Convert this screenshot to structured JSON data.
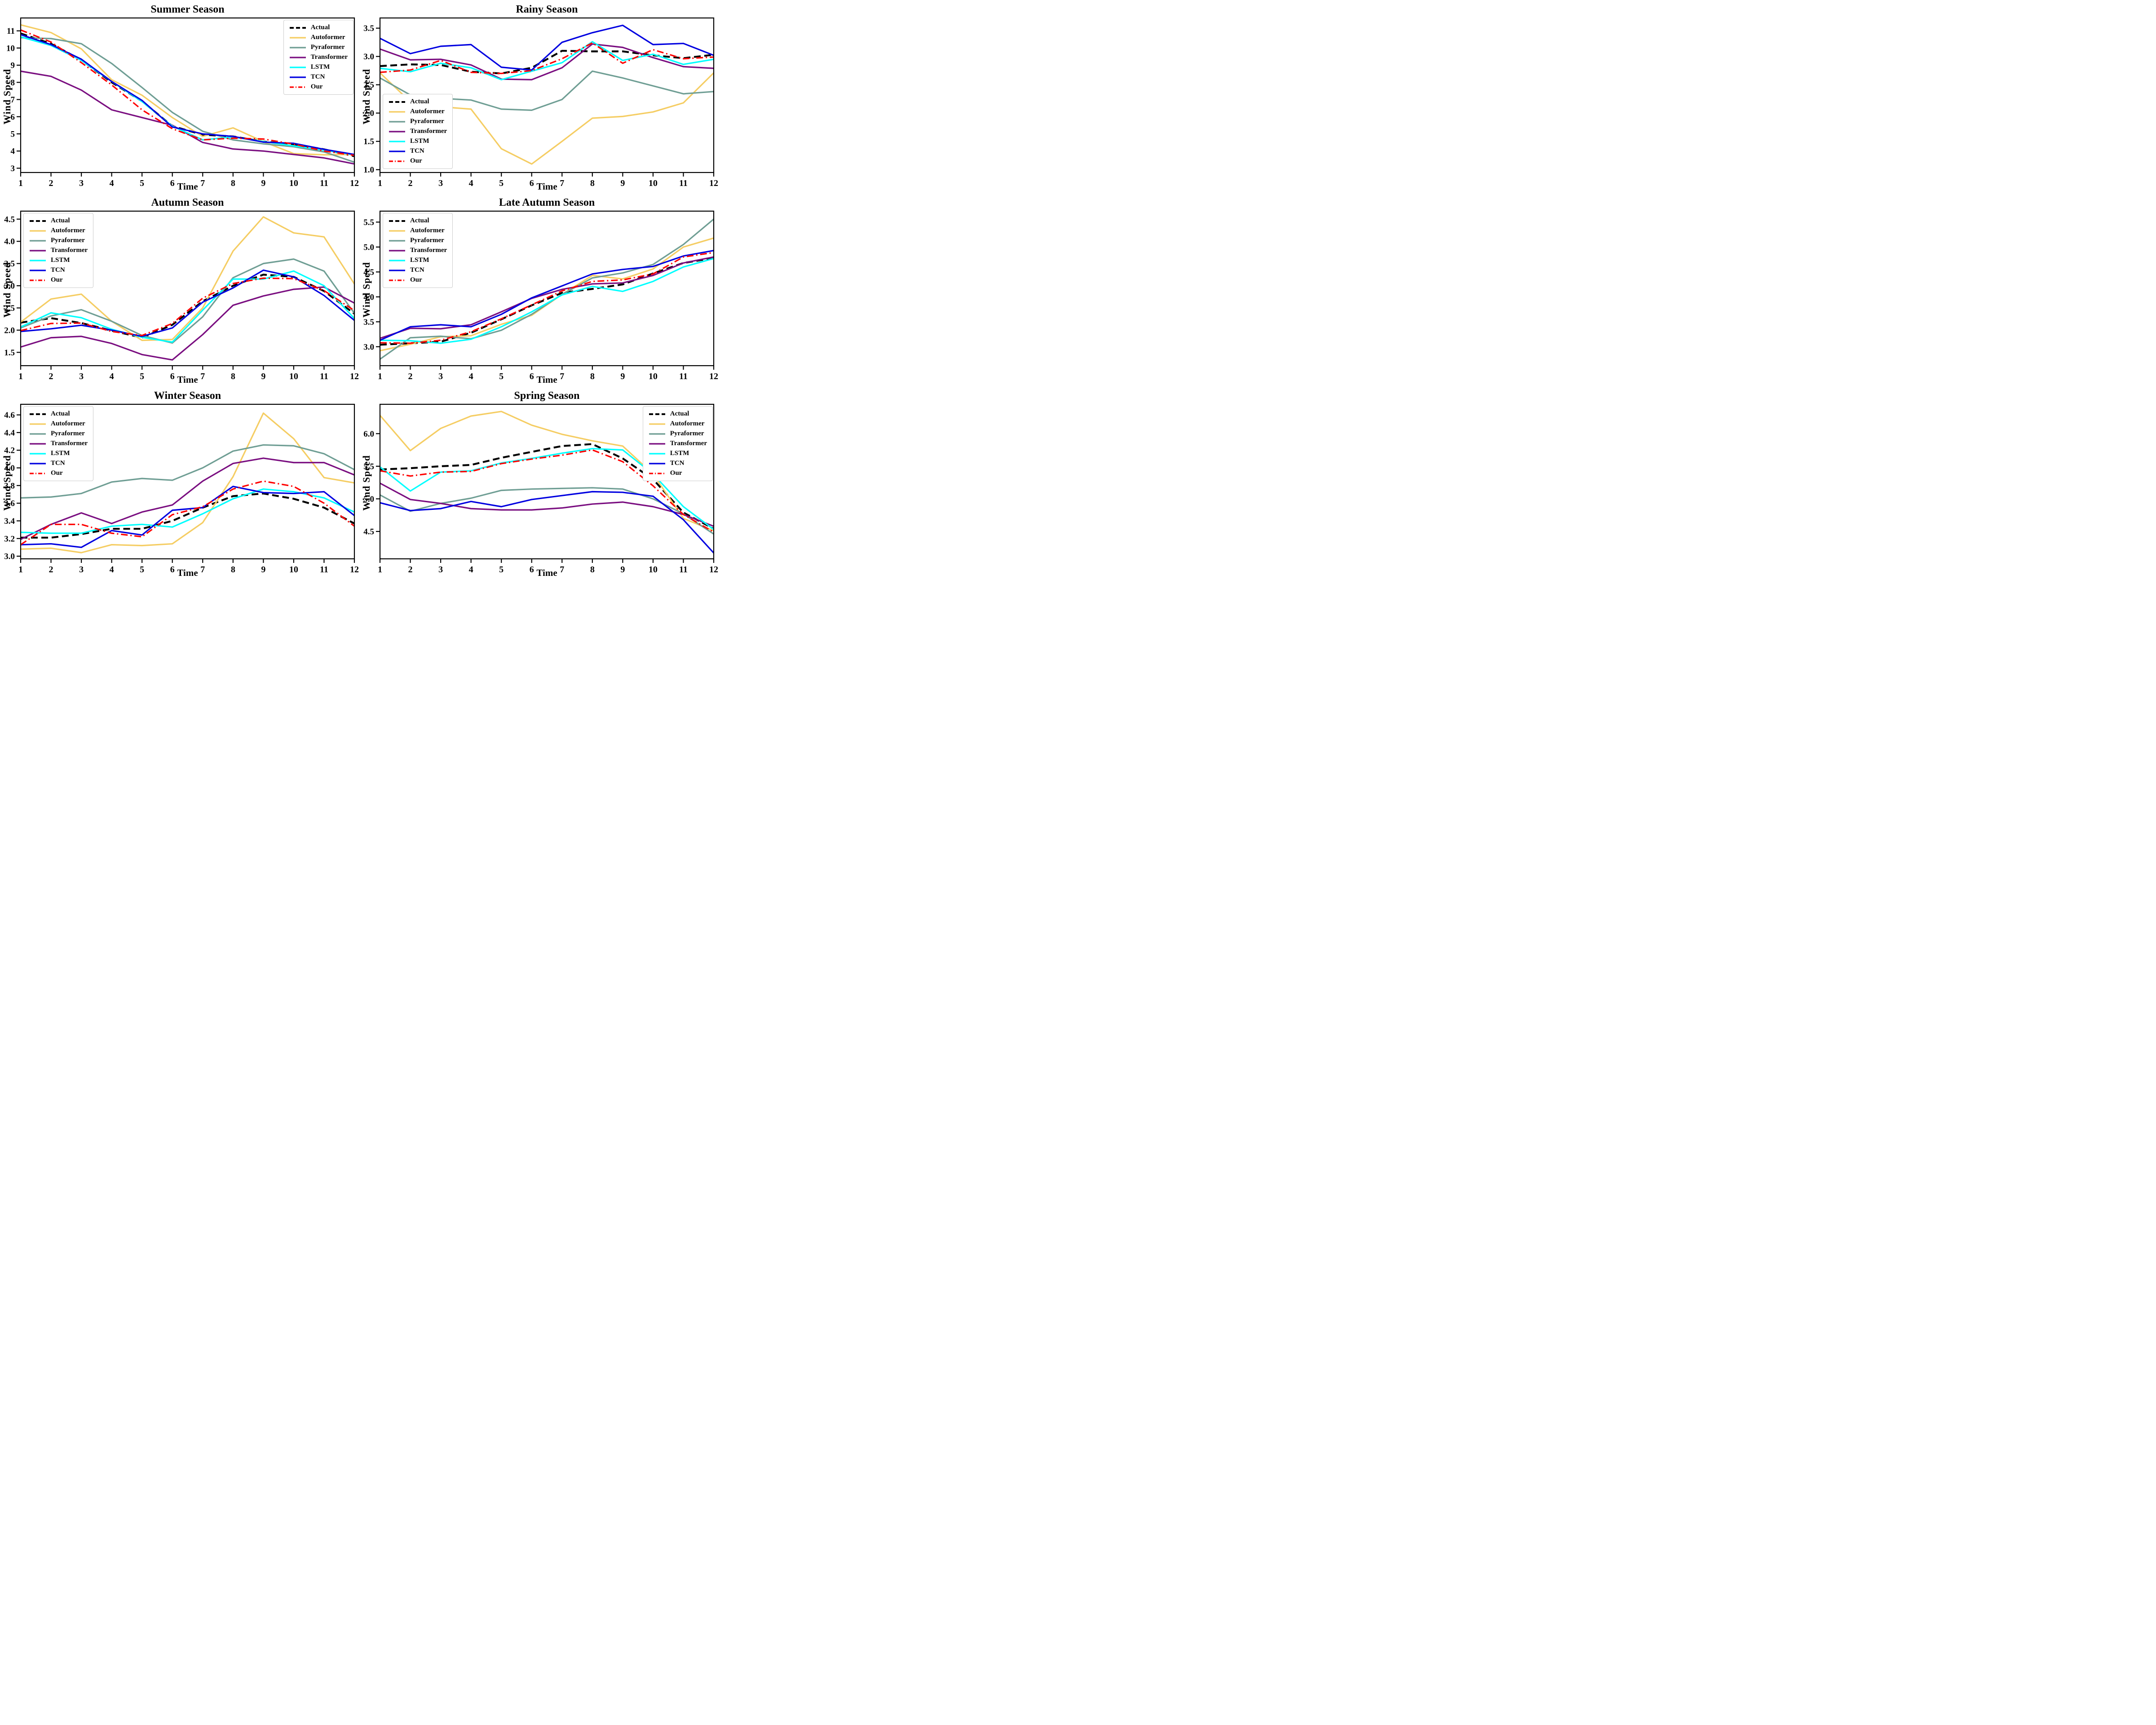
{
  "figure": {
    "xlabel": "Time",
    "ylabel": "Wind Speed"
  },
  "series_meta": [
    {
      "name": "Actual",
      "color": "#000000",
      "style": "dashed",
      "width": 4.2
    },
    {
      "name": "Autoformer",
      "color": "#F5CD63",
      "style": "solid",
      "width": 3.2
    },
    {
      "name": "Pyraformer",
      "color": "#6F9E94",
      "style": "solid",
      "width": 3.2
    },
    {
      "name": "Transformer",
      "color": "#7A0E80",
      "style": "solid",
      "width": 3.2
    },
    {
      "name": "LSTM",
      "color": "#00FFFF",
      "style": "solid",
      "width": 3.2
    },
    {
      "name": "TCN",
      "color": "#0000E0",
      "style": "solid",
      "width": 3.2
    },
    {
      "name": "Our",
      "color": "#FF0000",
      "style": "dashdot",
      "width": 3.2
    }
  ],
  "chart_data": [
    {
      "type": "line",
      "title": "Summer Season",
      "xlabel": "Time",
      "ylabel": "Wind Speed",
      "x": [
        1,
        2,
        3,
        4,
        5,
        6,
        7,
        8,
        9,
        10,
        11,
        12
      ],
      "xtick_labels": [
        "1",
        "2",
        "3",
        "4",
        "5",
        "6",
        "7",
        "8",
        "9",
        "10",
        "11",
        "12"
      ],
      "ylim": [
        2.75,
        11.75
      ],
      "yticks": [
        3,
        4,
        5,
        6,
        7,
        8,
        9,
        10,
        11
      ],
      "ytick_labels": [
        "3",
        "4",
        "5",
        "6",
        "7",
        "8",
        "9",
        "10",
        "11"
      ],
      "legend_position": "top-right",
      "grid": false,
      "series": [
        {
          "name": "Actual",
          "values": [
            10.85,
            10.25,
            9.3,
            8.0,
            6.9,
            5.45,
            4.95,
            4.85,
            4.55,
            4.4,
            4.1,
            3.7
          ]
        },
        {
          "name": "Autoformer",
          "values": [
            11.35,
            10.9,
            9.95,
            8.15,
            7.25,
            5.95,
            4.85,
            5.35,
            4.55,
            3.85,
            3.78,
            3.8
          ]
        },
        {
          "name": "Pyraformer",
          "values": [
            10.6,
            10.55,
            10.25,
            9.1,
            7.7,
            6.25,
            5.15,
            4.65,
            4.42,
            4.25,
            3.95,
            3.35
          ]
        },
        {
          "name": "Transformer",
          "values": [
            8.65,
            8.35,
            7.55,
            6.4,
            5.95,
            5.5,
            4.5,
            4.12,
            4.0,
            3.8,
            3.6,
            3.25
          ]
        },
        {
          "name": "LSTM",
          "values": [
            10.65,
            10.15,
            9.28,
            8.05,
            6.88,
            5.45,
            4.65,
            4.82,
            4.55,
            4.3,
            4.05,
            3.78
          ]
        },
        {
          "name": "TCN",
          "values": [
            10.78,
            10.2,
            9.35,
            8.05,
            6.95,
            5.4,
            5.0,
            4.85,
            4.52,
            4.45,
            4.1,
            3.8
          ]
        },
        {
          "name": "Our",
          "values": [
            11.05,
            10.35,
            9.15,
            7.85,
            6.4,
            5.3,
            4.65,
            4.75,
            4.7,
            4.4,
            4.0,
            3.75
          ]
        }
      ]
    },
    {
      "type": "line",
      "title": "Rainy Season",
      "xlabel": "Time",
      "ylabel": "Wind Speed",
      "x": [
        1,
        2,
        3,
        4,
        5,
        6,
        7,
        8,
        9,
        10,
        11,
        12
      ],
      "xtick_labels": [
        "1",
        "2",
        "3",
        "4",
        "5",
        "6",
        "7",
        "8",
        "9",
        "10",
        "11",
        "12"
      ],
      "ylim": [
        0.95,
        3.68
      ],
      "yticks": [
        1.0,
        1.5,
        2.0,
        2.5,
        3.0,
        3.5
      ],
      "ytick_labels": [
        "1.0",
        "1.5",
        "2.0",
        "2.5",
        "3.0",
        "3.5"
      ],
      "legend_position": "bottom-left",
      "grid": false,
      "series": [
        {
          "name": "Actual",
          "values": [
            2.83,
            2.86,
            2.85,
            2.73,
            2.7,
            2.8,
            3.1,
            3.09,
            3.09,
            3.02,
            2.97,
            3.03
          ]
        },
        {
          "name": "Autoformer",
          "values": [
            2.71,
            2.2,
            2.11,
            2.07,
            1.37,
            1.1,
            1.5,
            1.91,
            1.94,
            2.02,
            2.18,
            2.71
          ]
        },
        {
          "name": "Pyraformer",
          "values": [
            2.62,
            2.32,
            2.26,
            2.23,
            2.07,
            2.05,
            2.24,
            2.74,
            2.62,
            2.48,
            2.34,
            2.38
          ]
        },
        {
          "name": "Transformer",
          "values": [
            3.13,
            2.94,
            2.95,
            2.85,
            2.6,
            2.59,
            2.8,
            3.22,
            3.16,
            2.98,
            2.82,
            2.79
          ]
        },
        {
          "name": "LSTM",
          "values": [
            2.79,
            2.73,
            2.88,
            2.8,
            2.59,
            2.74,
            2.89,
            3.26,
            2.93,
            3.04,
            2.86,
            2.95
          ]
        },
        {
          "name": "TCN",
          "values": [
            3.32,
            3.05,
            3.18,
            3.21,
            2.81,
            2.76,
            3.25,
            3.42,
            3.55,
            3.21,
            3.23,
            3.02
          ]
        },
        {
          "name": "Our",
          "values": [
            2.72,
            2.76,
            2.93,
            2.72,
            2.7,
            2.75,
            2.96,
            3.24,
            2.88,
            3.12,
            2.96,
            2.99
          ]
        }
      ]
    },
    {
      "type": "line",
      "title": "Autumn Season",
      "xlabel": "Time",
      "ylabel": "Wind Speed",
      "x": [
        1,
        2,
        3,
        4,
        5,
        6,
        7,
        8,
        9,
        10,
        11,
        12
      ],
      "xtick_labels": [
        "1",
        "2",
        "3",
        "4",
        "5",
        "6",
        "7",
        "8",
        "9",
        "10",
        "11",
        "12"
      ],
      "ylim": [
        1.2,
        4.68
      ],
      "yticks": [
        1.5,
        2.0,
        2.5,
        3.0,
        3.5,
        4.0,
        4.5
      ],
      "ytick_labels": [
        "1.5",
        "2.0",
        "2.5",
        "3.0",
        "3.5",
        "4.0",
        "4.5"
      ],
      "legend_position": "top-left",
      "grid": false,
      "series": [
        {
          "name": "Actual",
          "values": [
            2.17,
            2.27,
            2.16,
            1.99,
            1.83,
            2.12,
            2.65,
            3.0,
            3.25,
            3.2,
            2.88,
            2.37
          ]
        },
        {
          "name": "Autoformer",
          "values": [
            2.18,
            2.7,
            2.81,
            2.2,
            1.77,
            1.79,
            2.5,
            3.78,
            4.55,
            4.19,
            4.1,
            3.04
          ]
        },
        {
          "name": "Pyraformer",
          "values": [
            2.05,
            2.32,
            2.46,
            2.2,
            1.88,
            1.71,
            2.3,
            3.18,
            3.5,
            3.6,
            3.33,
            2.38
          ]
        },
        {
          "name": "Transformer",
          "values": [
            1.62,
            1.83,
            1.86,
            1.7,
            1.45,
            1.33,
            1.9,
            2.56,
            2.77,
            2.92,
            2.97,
            2.61
          ]
        },
        {
          "name": "LSTM",
          "values": [
            2.07,
            2.39,
            2.28,
            2.02,
            1.84,
            1.73,
            2.45,
            3.15,
            3.15,
            3.33,
            3.0,
            2.26
          ]
        },
        {
          "name": "TCN",
          "values": [
            1.97,
            2.03,
            2.11,
            2.0,
            1.86,
            2.05,
            2.63,
            2.95,
            3.35,
            3.2,
            2.78,
            2.22
          ]
        },
        {
          "name": "Our",
          "values": [
            1.99,
            2.15,
            2.16,
            1.97,
            1.88,
            2.15,
            2.72,
            3.05,
            3.17,
            3.16,
            2.89,
            2.44
          ]
        }
      ]
    },
    {
      "type": "line",
      "title": "Late Autumn Season",
      "xlabel": "Time",
      "ylabel": "Wind Speed",
      "x": [
        1,
        2,
        3,
        4,
        5,
        6,
        7,
        8,
        9,
        10,
        11,
        12
      ],
      "xtick_labels": [
        "1",
        "2",
        "3",
        "4",
        "5",
        "6",
        "7",
        "8",
        "9",
        "10",
        "11",
        "12"
      ],
      "ylim": [
        2.62,
        5.72
      ],
      "yticks": [
        3.0,
        3.5,
        4.0,
        4.5,
        5.0,
        5.5
      ],
      "ytick_labels": [
        "3.0",
        "3.5",
        "4.0",
        "4.5",
        "5.0",
        "5.5"
      ],
      "legend_position": "top-left",
      "grid": false,
      "series": [
        {
          "name": "Actual",
          "values": [
            3.04,
            3.07,
            3.1,
            3.28,
            3.55,
            3.83,
            4.08,
            4.16,
            4.25,
            4.47,
            4.68,
            4.78
          ]
        },
        {
          "name": "Autoformer",
          "values": [
            2.92,
            3.05,
            3.2,
            3.22,
            3.45,
            3.63,
            4.05,
            4.43,
            4.36,
            4.56,
            5.0,
            5.18
          ]
        },
        {
          "name": "Pyraformer",
          "values": [
            2.75,
            3.18,
            3.21,
            3.16,
            3.33,
            3.65,
            4.05,
            4.38,
            4.48,
            4.65,
            5.05,
            5.56
          ]
        },
        {
          "name": "Transformer",
          "values": [
            3.17,
            3.37,
            3.36,
            3.44,
            3.7,
            3.97,
            4.15,
            4.26,
            4.28,
            4.43,
            4.68,
            4.8
          ]
        },
        {
          "name": "LSTM",
          "values": [
            3.13,
            3.12,
            3.07,
            3.15,
            3.4,
            3.7,
            4.04,
            4.21,
            4.11,
            4.31,
            4.6,
            4.77
          ]
        },
        {
          "name": "TCN",
          "values": [
            3.13,
            3.4,
            3.44,
            3.4,
            3.65,
            3.98,
            4.22,
            4.46,
            4.55,
            4.61,
            4.82,
            4.93
          ]
        },
        {
          "name": "Our",
          "values": [
            3.08,
            3.07,
            3.13,
            3.3,
            3.56,
            3.84,
            4.12,
            4.31,
            4.34,
            4.46,
            4.8,
            4.89
          ]
        }
      ]
    },
    {
      "type": "line",
      "title": "Winter Season",
      "xlabel": "Time",
      "ylabel": "Wind Speed",
      "x": [
        1,
        2,
        3,
        4,
        5,
        6,
        7,
        8,
        9,
        10,
        11,
        12
      ],
      "xtick_labels": [
        "1",
        "2",
        "3",
        "4",
        "5",
        "6",
        "7",
        "8",
        "9",
        "10",
        "11",
        "12"
      ],
      "ylim": [
        2.97,
        4.72
      ],
      "yticks": [
        3.0,
        3.2,
        3.4,
        3.6,
        3.8,
        4.0,
        4.2,
        4.4,
        4.6
      ],
      "ytick_labels": [
        "3.0",
        "3.2",
        "3.4",
        "3.6",
        "3.8",
        "4.0",
        "4.2",
        "4.4",
        "4.6"
      ],
      "legend_position": "top-left",
      "grid": false,
      "series": [
        {
          "name": "Actual",
          "values": [
            3.21,
            3.21,
            3.25,
            3.31,
            3.31,
            3.4,
            3.55,
            3.68,
            3.71,
            3.65,
            3.55,
            3.37
          ]
        },
        {
          "name": "Autoformer",
          "values": [
            3.08,
            3.09,
            3.04,
            3.13,
            3.12,
            3.14,
            3.38,
            3.9,
            4.62,
            4.33,
            3.89,
            3.83
          ]
        },
        {
          "name": "Pyraformer",
          "values": [
            3.66,
            3.67,
            3.71,
            3.84,
            3.88,
            3.86,
            4.0,
            4.19,
            4.26,
            4.25,
            4.16,
            3.98
          ]
        },
        {
          "name": "Transformer",
          "values": [
            3.19,
            3.36,
            3.49,
            3.37,
            3.5,
            3.58,
            3.85,
            4.05,
            4.11,
            4.06,
            4.06,
            3.92
          ]
        },
        {
          "name": "LSTM",
          "values": [
            3.27,
            3.26,
            3.26,
            3.34,
            3.36,
            3.33,
            3.48,
            3.65,
            3.76,
            3.73,
            3.66,
            3.5
          ]
        },
        {
          "name": "TCN",
          "values": [
            3.13,
            3.14,
            3.1,
            3.29,
            3.24,
            3.52,
            3.55,
            3.79,
            3.72,
            3.71,
            3.73,
            3.46
          ]
        },
        {
          "name": "Our",
          "values": [
            3.13,
            3.36,
            3.36,
            3.26,
            3.22,
            3.47,
            3.56,
            3.76,
            3.85,
            3.79,
            3.6,
            3.34
          ]
        }
      ]
    },
    {
      "type": "line",
      "title": "Spring Season",
      "xlabel": "Time",
      "ylabel": "Wind Speed",
      "x": [
        1,
        2,
        3,
        4,
        5,
        6,
        7,
        8,
        9,
        10,
        11,
        12
      ],
      "xtick_labels": [
        "1",
        "2",
        "3",
        "4",
        "5",
        "6",
        "7",
        "8",
        "9",
        "10",
        "11",
        "12"
      ],
      "ylim": [
        4.08,
        6.45
      ],
      "yticks": [
        4.5,
        5.0,
        5.5,
        6.0
      ],
      "ytick_labels": [
        "4.5",
        "5.0",
        "5.5",
        "6.0"
      ],
      "legend_position": "top-right",
      "grid": false,
      "series": [
        {
          "name": "Actual",
          "values": [
            5.45,
            5.47,
            5.5,
            5.52,
            5.63,
            5.72,
            5.81,
            5.84,
            5.62,
            5.3,
            4.79,
            4.54
          ]
        },
        {
          "name": "Autoformer",
          "values": [
            6.28,
            5.74,
            6.08,
            6.27,
            6.34,
            6.13,
            5.99,
            5.89,
            5.81,
            5.38,
            4.7,
            4.51
          ]
        },
        {
          "name": "Pyraformer",
          "values": [
            5.06,
            4.81,
            4.93,
            5.01,
            5.13,
            5.15,
            5.16,
            5.17,
            5.15,
            5.0,
            4.77,
            4.46
          ]
        },
        {
          "name": "Transformer",
          "values": [
            5.24,
            4.99,
            4.93,
            4.85,
            4.83,
            4.83,
            4.86,
            4.92,
            4.95,
            4.88,
            4.76,
            4.58
          ]
        },
        {
          "name": "LSTM",
          "values": [
            5.49,
            5.12,
            5.41,
            5.43,
            5.55,
            5.62,
            5.7,
            5.77,
            5.75,
            5.38,
            4.88,
            4.53
          ]
        },
        {
          "name": "TCN",
          "values": [
            4.94,
            4.82,
            4.85,
            4.96,
            4.88,
            4.99,
            5.05,
            5.11,
            5.1,
            5.04,
            4.68,
            4.17
          ]
        },
        {
          "name": "Our",
          "values": [
            5.43,
            5.35,
            5.41,
            5.42,
            5.54,
            5.61,
            5.67,
            5.75,
            5.57,
            5.2,
            4.76,
            4.49
          ]
        }
      ]
    }
  ]
}
